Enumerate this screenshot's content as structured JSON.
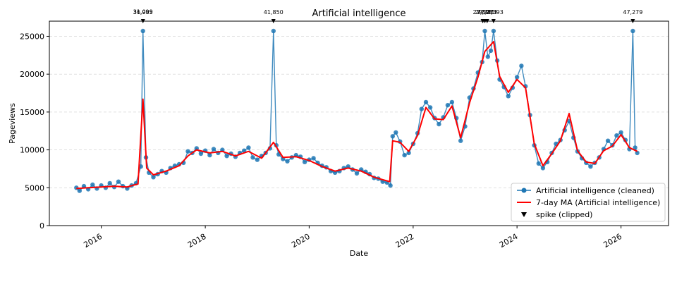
{
  "chart_data": {
    "type": "line",
    "title": "Artificial intelligence",
    "xlabel": "Date",
    "ylabel": "Pageviews",
    "x_range": [
      "2015-01-01",
      "2026-12-01"
    ],
    "ylim": [
      0,
      27000
    ],
    "y_ticks": [
      0,
      5000,
      10000,
      15000,
      20000,
      25000
    ],
    "y_tick_labels": [
      "0",
      "5000",
      "10000",
      "15000",
      "20000",
      "25000"
    ],
    "x_ticks": [
      "2016-01-01",
      "2018-01-01",
      "2020-01-01",
      "2022-01-01",
      "2024-01-01",
      "2026-01-01"
    ],
    "x_tick_labels": [
      "2016",
      "2018",
      "2020",
      "2022",
      "2024",
      "2026"
    ],
    "grid": "horizontal dashed",
    "legend_position": "lower-right",
    "clip_value": 25700,
    "series": [
      {
        "name": "Artificial intelligence (cleaned)",
        "color": "#1f77b4",
        "style": "line-with-markers",
        "points": [
          [
            "2015-07-10",
            5000
          ],
          [
            "2015-08-01",
            4600
          ],
          [
            "2015-09-01",
            5200
          ],
          [
            "2015-10-01",
            4800
          ],
          [
            "2015-11-01",
            5400
          ],
          [
            "2015-12-01",
            4900
          ],
          [
            "2016-01-01",
            5300
          ],
          [
            "2016-02-01",
            5000
          ],
          [
            "2016-03-01",
            5600
          ],
          [
            "2016-04-01",
            5100
          ],
          [
            "2016-05-01",
            5800
          ],
          [
            "2016-06-01",
            5200
          ],
          [
            "2016-07-01",
            4900
          ],
          [
            "2016-08-01",
            5300
          ],
          [
            "2016-09-01",
            5600
          ],
          [
            "2016-10-05",
            7800
          ],
          [
            "2016-10-20",
            25700
          ],
          [
            "2016-11-10",
            9000
          ],
          [
            "2016-12-01",
            7000
          ],
          [
            "2017-01-01",
            6400
          ],
          [
            "2017-02-01",
            6800
          ],
          [
            "2017-03-01",
            7200
          ],
          [
            "2017-04-01",
            7000
          ],
          [
            "2017-05-01",
            7600
          ],
          [
            "2017-06-01",
            7900
          ],
          [
            "2017-07-01",
            8100
          ],
          [
            "2017-08-01",
            8300
          ],
          [
            "2017-09-01",
            9800
          ],
          [
            "2017-10-01",
            9600
          ],
          [
            "2017-11-01",
            10200
          ],
          [
            "2017-12-01",
            9500
          ],
          [
            "2018-01-01",
            9900
          ],
          [
            "2018-02-01",
            9300
          ],
          [
            "2018-03-01",
            10100
          ],
          [
            "2018-04-01",
            9600
          ],
          [
            "2018-05-01",
            10000
          ],
          [
            "2018-06-01",
            9200
          ],
          [
            "2018-07-01",
            9500
          ],
          [
            "2018-08-01",
            9100
          ],
          [
            "2018-09-01",
            9600
          ],
          [
            "2018-10-01",
            9900
          ],
          [
            "2018-11-01",
            10300
          ],
          [
            "2018-12-01",
            9000
          ],
          [
            "2019-01-01",
            8700
          ],
          [
            "2019-02-01",
            9200
          ],
          [
            "2019-03-01",
            9600
          ],
          [
            "2019-04-01",
            10200
          ],
          [
            "2019-04-25",
            25700
          ],
          [
            "2019-05-15",
            10600
          ],
          [
            "2019-06-01",
            9400
          ],
          [
            "2019-07-01",
            8800
          ],
          [
            "2019-08-01",
            8500
          ],
          [
            "2019-09-01",
            9000
          ],
          [
            "2019-10-01",
            9300
          ],
          [
            "2019-11-01",
            9100
          ],
          [
            "2019-12-01",
            8400
          ],
          [
            "2020-01-01",
            8700
          ],
          [
            "2020-02-01",
            8900
          ],
          [
            "2020-03-01",
            8300
          ],
          [
            "2020-04-01",
            7900
          ],
          [
            "2020-05-01",
            7700
          ],
          [
            "2020-06-01",
            7200
          ],
          [
            "2020-07-01",
            7000
          ],
          [
            "2020-08-01",
            7200
          ],
          [
            "2020-09-01",
            7600
          ],
          [
            "2020-10-01",
            7800
          ],
          [
            "2020-11-01",
            7400
          ],
          [
            "2020-12-01",
            6900
          ],
          [
            "2021-01-01",
            7400
          ],
          [
            "2021-02-01",
            7100
          ],
          [
            "2021-03-01",
            6800
          ],
          [
            "2021-04-01",
            6300
          ],
          [
            "2021-05-01",
            6200
          ],
          [
            "2021-06-01",
            5800
          ],
          [
            "2021-07-01",
            5700
          ],
          [
            "2021-07-25",
            5300
          ],
          [
            "2021-08-10",
            11800
          ],
          [
            "2021-09-01",
            12300
          ],
          [
            "2021-10-01",
            11100
          ],
          [
            "2021-11-01",
            9300
          ],
          [
            "2021-12-01",
            9600
          ],
          [
            "2022-01-01",
            10800
          ],
          [
            "2022-02-01",
            12200
          ],
          [
            "2022-03-01",
            15400
          ],
          [
            "2022-04-01",
            16300
          ],
          [
            "2022-05-01",
            15600
          ],
          [
            "2022-06-01",
            14200
          ],
          [
            "2022-07-01",
            13400
          ],
          [
            "2022-08-01",
            14300
          ],
          [
            "2022-09-01",
            15900
          ],
          [
            "2022-10-01",
            16300
          ],
          [
            "2022-11-01",
            14200
          ],
          [
            "2022-12-01",
            11200
          ],
          [
            "2023-01-01",
            13100
          ],
          [
            "2023-02-01",
            16900
          ],
          [
            "2023-03-01",
            18100
          ],
          [
            "2023-04-01",
            20200
          ],
          [
            "2023-05-01",
            21600
          ],
          [
            "2023-05-20",
            25700
          ],
          [
            "2023-06-10",
            22300
          ],
          [
            "2023-07-01",
            23100
          ],
          [
            "2023-07-20",
            25700
          ],
          [
            "2023-08-15",
            21800
          ],
          [
            "2023-09-01",
            19300
          ],
          [
            "2023-10-01",
            18300
          ],
          [
            "2023-11-01",
            17100
          ],
          [
            "2023-12-01",
            18200
          ],
          [
            "2024-01-01",
            19600
          ],
          [
            "2024-02-01",
            21100
          ],
          [
            "2024-03-01",
            18400
          ],
          [
            "2024-04-01",
            14600
          ],
          [
            "2024-05-01",
            10600
          ],
          [
            "2024-06-01",
            8200
          ],
          [
            "2024-07-01",
            7600
          ],
          [
            "2024-08-01",
            8400
          ],
          [
            "2024-09-01",
            9600
          ],
          [
            "2024-10-01",
            10800
          ],
          [
            "2024-11-01",
            11300
          ],
          [
            "2024-12-01",
            12600
          ],
          [
            "2025-01-01",
            13800
          ],
          [
            "2025-02-01",
            11600
          ],
          [
            "2025-03-01",
            9800
          ],
          [
            "2025-04-01",
            8900
          ],
          [
            "2025-05-01",
            8300
          ],
          [
            "2025-06-01",
            7800
          ],
          [
            "2025-07-01",
            8300
          ],
          [
            "2025-08-01",
            9000
          ],
          [
            "2025-09-01",
            10100
          ],
          [
            "2025-10-01",
            11200
          ],
          [
            "2025-11-01",
            10600
          ],
          [
            "2025-12-01",
            11900
          ],
          [
            "2026-01-01",
            12300
          ],
          [
            "2026-02-01",
            11300
          ],
          [
            "2026-03-01",
            10100
          ],
          [
            "2026-03-25",
            25700
          ],
          [
            "2026-04-10",
            10300
          ],
          [
            "2026-04-25",
            9600
          ]
        ]
      },
      {
        "name": "7-day MA (Artificial intelligence)",
        "color": "#ff0000",
        "style": "line",
        "points": [
          [
            "2015-07-10",
            4900
          ],
          [
            "2015-10-01",
            5000
          ],
          [
            "2016-01-01",
            5100
          ],
          [
            "2016-04-01",
            5200
          ],
          [
            "2016-07-01",
            5100
          ],
          [
            "2016-09-15",
            5500
          ],
          [
            "2016-10-20",
            16700
          ],
          [
            "2016-11-15",
            7600
          ],
          [
            "2017-01-01",
            6700
          ],
          [
            "2017-04-01",
            7200
          ],
          [
            "2017-07-01",
            7900
          ],
          [
            "2017-09-01",
            9200
          ],
          [
            "2017-11-01",
            10000
          ],
          [
            "2018-02-01",
            9600
          ],
          [
            "2018-05-01",
            9800
          ],
          [
            "2018-08-01",
            9200
          ],
          [
            "2018-11-01",
            9800
          ],
          [
            "2019-02-01",
            8900
          ],
          [
            "2019-04-25",
            11000
          ],
          [
            "2019-07-01",
            9000
          ],
          [
            "2019-10-01",
            9100
          ],
          [
            "2020-01-01",
            8600
          ],
          [
            "2020-04-01",
            7800
          ],
          [
            "2020-07-01",
            7200
          ],
          [
            "2020-10-01",
            7600
          ],
          [
            "2021-01-01",
            7200
          ],
          [
            "2021-04-01",
            6400
          ],
          [
            "2021-07-20",
            5800
          ],
          [
            "2021-08-10",
            11200
          ],
          [
            "2021-10-01",
            11000
          ],
          [
            "2021-12-01",
            9800
          ],
          [
            "2022-02-01",
            11900
          ],
          [
            "2022-04-01",
            15600
          ],
          [
            "2022-06-01",
            14100
          ],
          [
            "2022-08-01",
            14000
          ],
          [
            "2022-10-01",
            15800
          ],
          [
            "2022-12-01",
            11600
          ],
          [
            "2023-02-01",
            16200
          ],
          [
            "2023-04-01",
            19600
          ],
          [
            "2023-05-20",
            23000
          ],
          [
            "2023-07-20",
            24300
          ],
          [
            "2023-09-01",
            19700
          ],
          [
            "2023-11-01",
            17600
          ],
          [
            "2024-01-01",
            19300
          ],
          [
            "2024-03-01",
            18200
          ],
          [
            "2024-05-01",
            10800
          ],
          [
            "2024-07-01",
            7900
          ],
          [
            "2024-09-01",
            9500
          ],
          [
            "2024-11-01",
            11200
          ],
          [
            "2025-01-01",
            14800
          ],
          [
            "2025-03-01",
            9900
          ],
          [
            "2025-05-01",
            8400
          ],
          [
            "2025-07-01",
            8200
          ],
          [
            "2025-09-01",
            9900
          ],
          [
            "2025-11-01",
            10500
          ],
          [
            "2026-01-01",
            12000
          ],
          [
            "2026-03-01",
            10300
          ],
          [
            "2026-04-25",
            9800
          ]
        ]
      }
    ],
    "spikes": [
      {
        "date": "2016-10-20",
        "labels": [
          "36,985",
          "31,099"
        ]
      },
      {
        "date": "2019-04-25",
        "labels": [
          "41,850"
        ]
      },
      {
        "date": "2023-05-05",
        "labels": [
          "27,898"
        ]
      },
      {
        "date": "2023-05-20",
        "labels": [
          "29,371"
        ]
      },
      {
        "date": "2023-06-05",
        "labels": [
          "27,273"
        ]
      },
      {
        "date": "2023-07-20",
        "labels": [
          "28,393"
        ]
      },
      {
        "date": "2026-03-25",
        "labels": [
          "47,279"
        ]
      }
    ],
    "legend": [
      {
        "label": "Artificial intelligence (cleaned)",
        "marker": "line-circle",
        "color": "#1f77b4"
      },
      {
        "label": "7-day MA (Artificial intelligence)",
        "marker": "line",
        "color": "#ff0000"
      },
      {
        "label": "spike (clipped)",
        "marker": "triangle-down",
        "color": "#000000"
      }
    ]
  }
}
